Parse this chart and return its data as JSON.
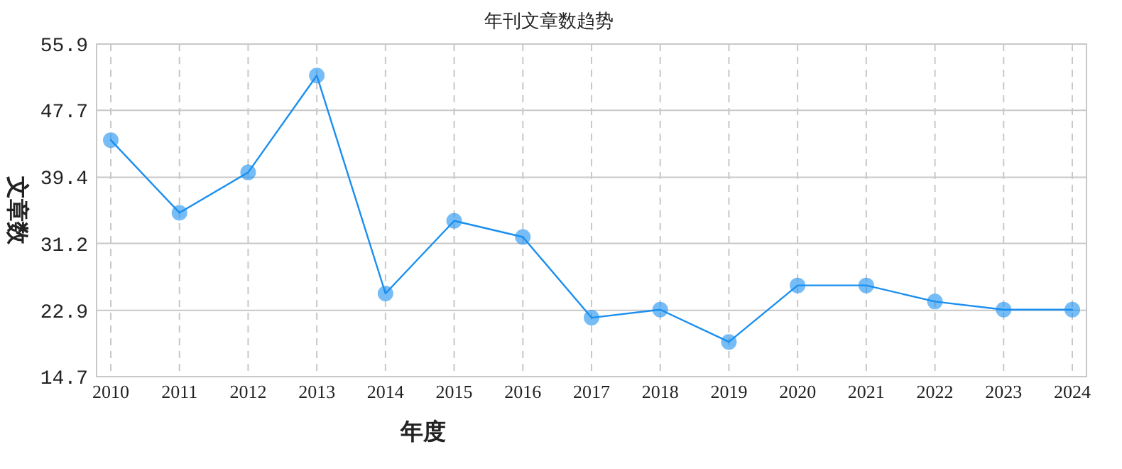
{
  "chart_data": {
    "type": "line",
    "title": "年刊文章数趋势",
    "xlabel": "年度",
    "ylabel": "文章数",
    "categories": [
      "2010",
      "2011",
      "2012",
      "2013",
      "2014",
      "2015",
      "2016",
      "2017",
      "2018",
      "2019",
      "2020",
      "2021",
      "2022",
      "2023",
      "2024"
    ],
    "series": [
      {
        "color": "#1a8ff0",
        "values": [
          44,
          35,
          40,
          52,
          25,
          34,
          32,
          22,
          23,
          19,
          26,
          26,
          24,
          23,
          23
        ]
      }
    ],
    "ylim": [
      14.7,
      55.9
    ],
    "yticks": [
      14.7,
      22.9,
      31.2,
      39.4,
      47.7,
      55.9
    ],
    "grid": true,
    "marker": "circle",
    "line_style": "solid"
  }
}
